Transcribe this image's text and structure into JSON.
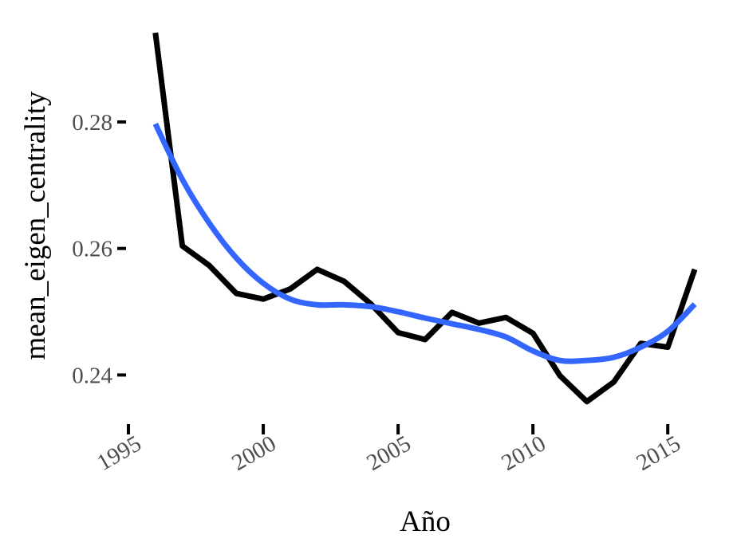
{
  "chart_data": {
    "type": "line",
    "title": "",
    "xlabel": "Año",
    "ylabel": "mean_eigen_centrality",
    "xlim": [
      1995,
      2016
    ],
    "ylim": [
      0.2335,
      0.2955
    ],
    "x_ticks": [
      1995,
      2000,
      2005,
      2010,
      2015
    ],
    "x_tick_labels": [
      "1995",
      "2000",
      "2005",
      "2010",
      "2015"
    ],
    "y_ticks": [
      0.24,
      0.26,
      0.28
    ],
    "y_tick_labels": [
      "0.24",
      "0.26",
      "0.28"
    ],
    "grid": false,
    "legend": "none",
    "series": [
      {
        "color": "#000000",
        "x": [
          1996,
          1997,
          1998,
          1999,
          2000,
          2001,
          2002,
          2003,
          2004,
          2005,
          2006,
          2007,
          2008,
          2009,
          2010,
          2011,
          2012,
          2013,
          2014,
          2015,
          2016
        ],
        "y": [
          0.2941,
          0.2604,
          0.2573,
          0.2529,
          0.252,
          0.2536,
          0.2567,
          0.2548,
          0.2512,
          0.2467,
          0.2456,
          0.2499,
          0.2482,
          0.2491,
          0.2466,
          0.2399,
          0.2358,
          0.2389,
          0.245,
          0.2444,
          0.2567
        ]
      },
      {
        "color": "#3366ff",
        "smooth": true,
        "x": [
          1996,
          1997,
          1998,
          1999,
          2000,
          2001,
          2002,
          2003,
          2004,
          2005,
          2006,
          2007,
          2008,
          2009,
          2010,
          2011,
          2012,
          2013,
          2014,
          2015,
          2016
        ],
        "y": [
          0.2797,
          0.2709,
          0.264,
          0.2585,
          0.2545,
          0.252,
          0.2511,
          0.2511,
          0.2508,
          0.25,
          0.249,
          0.2481,
          0.2472,
          0.246,
          0.2438,
          0.2423,
          0.2423,
          0.2428,
          0.2444,
          0.2469,
          0.2512
        ]
      }
    ]
  }
}
